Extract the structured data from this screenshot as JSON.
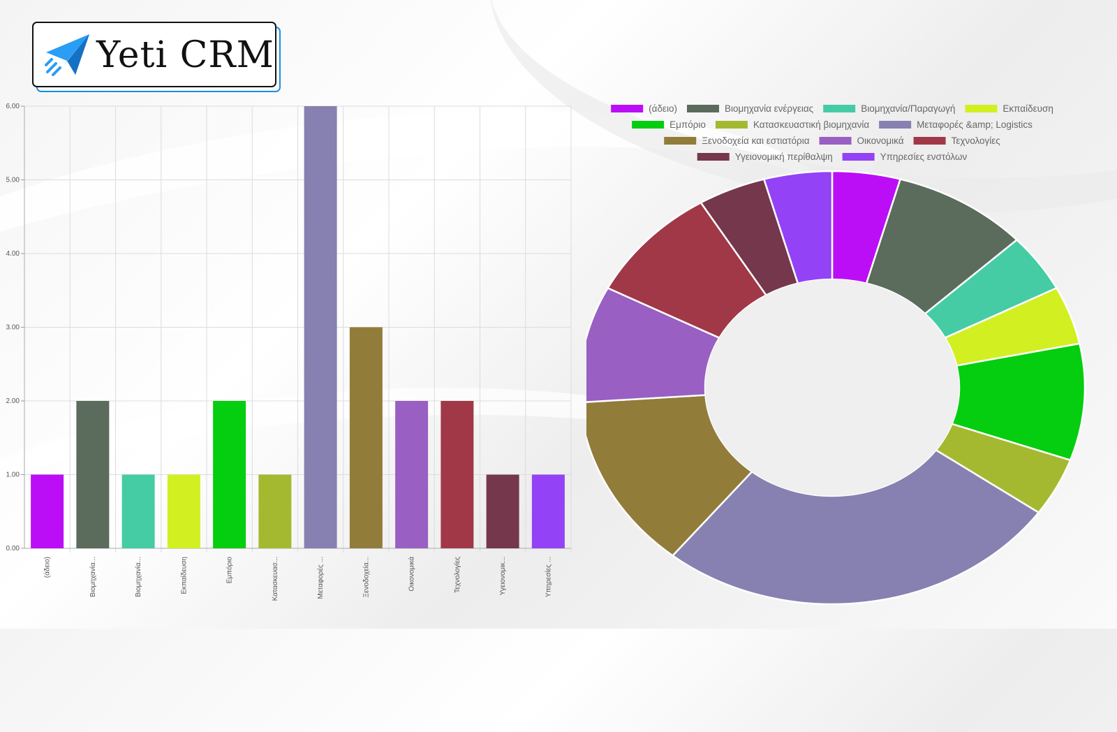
{
  "logo": {
    "text": "Yeti CRM"
  },
  "icons": {
    "logo": "paper-plane-icon"
  },
  "chart_data": [
    {
      "type": "bar",
      "categories": [
        "(άδειο)",
        "Βιομηχανία...",
        "Βιομηχανία...",
        "Εκπαίδευση",
        "Εμπόριο",
        "Κατασκευασ...",
        "Μεταφορές ...",
        "Ξενοδοχεία...",
        "Οικονομικά",
        "Τεχνολογίες",
        "Υγειονομικ...",
        "Υπηρεσίες ..."
      ],
      "values": [
        1,
        2,
        1,
        1,
        2,
        1,
        6,
        3,
        2,
        2,
        1,
        1
      ],
      "colors": [
        "#bb0ef7",
        "#5b6b5c",
        "#45cca4",
        "#d2ef22",
        "#05cd0f",
        "#a5b930",
        "#8681b0",
        "#917c3a",
        "#995fc2",
        "#a13847",
        "#75374b",
        "#9342f5"
      ],
      "yticks": [
        "0.00",
        "1.00",
        "2.00",
        "3.00",
        "4.00",
        "5.00",
        "6.00"
      ],
      "ylim": [
        0,
        6
      ],
      "grid": true
    },
    {
      "type": "pie",
      "labels": [
        "(άδειο)",
        "Βιομηχανία ενέργειας",
        "Βιομηχανία/Παραγωγή",
        "Εκπαίδευση",
        "Εμπόριο",
        "Κατασκευαστική βιομηχανία",
        "Μεταφορές &amp; Logistics",
        "Ξενοδοχεία και εστιατόρια",
        "Οικονομικά",
        "Τεχνολογίες",
        "Υγειονομική περίθαλψη",
        "Υπηρεσίες ενστόλων"
      ],
      "values": [
        1,
        2,
        1,
        1,
        2,
        1,
        6,
        3,
        2,
        2,
        1,
        1
      ],
      "colors": [
        "#bb0ef7",
        "#5b6b5c",
        "#45cca4",
        "#d2ef22",
        "#05cd0f",
        "#a5b930",
        "#8681b0",
        "#917c3a",
        "#995fc2",
        "#a13847",
        "#75374b",
        "#9342f5"
      ],
      "legend_position": "top",
      "doughnut": true
    }
  ]
}
